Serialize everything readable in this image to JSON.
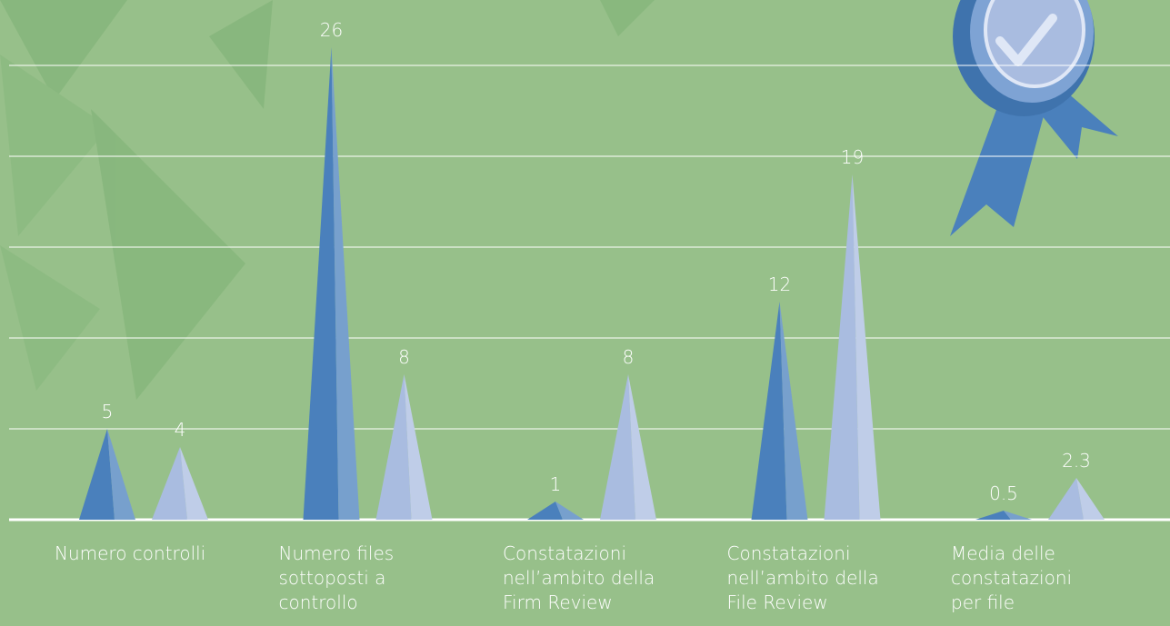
{
  "chart_data": {
    "type": "spike",
    "categories": [
      "Numero controlli",
      "Numero files\nsottoposti a\ncontrollo",
      "Constatazioni\nnell’ambito della\nFirm Review",
      "Constatazioni\nnell’ambito della\nFile Review",
      "Media delle\nconstatazioni\nper file"
    ],
    "series": [
      {
        "color": "#4a80bc",
        "values": [
          5,
          26,
          1,
          12,
          0.5
        ]
      },
      {
        "color": "#a9bce0",
        "values": [
          4,
          8,
          8,
          19,
          2.3
        ]
      }
    ],
    "ylim": [
      0,
      28.6
    ],
    "yticks": [
      0,
      5,
      10,
      15,
      20,
      25
    ],
    "grid": true
  }
}
